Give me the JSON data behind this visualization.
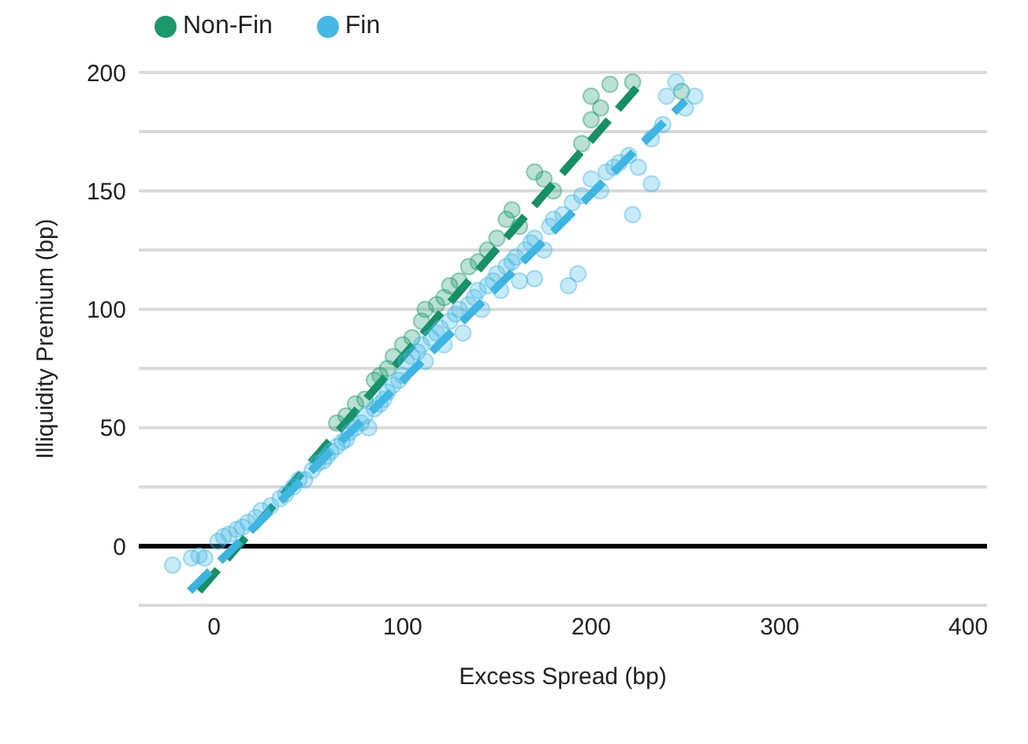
{
  "chart_data": {
    "type": "scatter",
    "xlabel": "Excess Spread (bp)",
    "ylabel": "Illiquidity Premium (bp)",
    "xlim": [
      -40,
      410
    ],
    "xticks": [
      0,
      100,
      200,
      300,
      400
    ],
    "ylim": [
      -25,
      200
    ],
    "yticks": [
      {
        "value": -25,
        "label": null
      },
      0,
      {
        "value": 25,
        "label": null
      },
      50,
      {
        "value": 75,
        "label": null
      },
      100,
      {
        "value": 125,
        "label": null
      },
      150,
      {
        "value": 175,
        "label": null
      },
      200
    ],
    "grid": "y",
    "legend": "top left",
    "marker": "circle",
    "ref_lines": [
      {
        "axis": "y",
        "value": 0,
        "color": "#000000"
      }
    ],
    "series": [
      {
        "type": "scatter",
        "name": "Non-Fin",
        "color": "#1a9a6c",
        "x": [
          65,
          70,
          75,
          80,
          85,
          88,
          92,
          95,
          100,
          105,
          110,
          112,
          118,
          122,
          125,
          130,
          135,
          140,
          145,
          150,
          155,
          158,
          162,
          170,
          175,
          180,
          195,
          200,
          205,
          210,
          222,
          242,
          248,
          200
        ],
        "values": [
          52,
          55,
          60,
          62,
          70,
          72,
          75,
          80,
          85,
          88,
          95,
          100,
          102,
          105,
          110,
          112,
          118,
          120,
          125,
          130,
          138,
          142,
          135,
          158,
          155,
          150,
          170,
          190,
          185,
          195,
          196,
          null,
          192,
          180
        ]
      },
      {
        "type": "scatter",
        "name": "Fin",
        "color": "#45b8e6",
        "x": [
          -22,
          -12,
          -8,
          -5,
          2,
          5,
          8,
          12,
          15,
          18,
          22,
          25,
          30,
          35,
          38,
          42,
          45,
          48,
          52,
          55,
          58,
          60,
          62,
          65,
          68,
          70,
          72,
          75,
          78,
          80,
          82,
          85,
          88,
          90,
          92,
          95,
          98,
          100,
          102,
          105,
          108,
          110,
          112,
          115,
          118,
          120,
          122,
          125,
          128,
          130,
          132,
          135,
          138,
          140,
          142,
          145,
          148,
          150,
          152,
          155,
          158,
          160,
          162,
          165,
          168,
          170,
          175,
          178,
          180,
          185,
          188,
          190,
          195,
          200,
          205,
          208,
          212,
          215,
          220,
          225,
          232,
          238,
          240,
          245,
          250,
          255,
          222,
          232,
          193,
          170
        ],
        "values": [
          -8,
          -5,
          -4,
          -5,
          2,
          4,
          5,
          7,
          8,
          10,
          12,
          15,
          17,
          20,
          22,
          25,
          28,
          28,
          32,
          35,
          36,
          38,
          40,
          42,
          44,
          45,
          48,
          50,
          52,
          55,
          50,
          58,
          60,
          62,
          65,
          68,
          70,
          72,
          78,
          80,
          82,
          85,
          78,
          88,
          90,
          92,
          85,
          95,
          98,
          100,
          90,
          102,
          105,
          108,
          100,
          110,
          112,
          115,
          108,
          118,
          120,
          122,
          112,
          125,
          128,
          130,
          125,
          135,
          138,
          140,
          110,
          145,
          148,
          155,
          150,
          158,
          160,
          162,
          165,
          160,
          172,
          178,
          190,
          196,
          185,
          190,
          140,
          153,
          115,
          113
        ]
      },
      {
        "type": "line",
        "color": "#168f66",
        "line_style": "dashed",
        "marker": "none",
        "x": [
          -8,
          229
        ],
        "values": [
          -19,
          198
        ]
      },
      {
        "type": "line",
        "color": "#3bb3e0",
        "line_style": "dashed",
        "marker": "none",
        "x": [
          -13,
          250
        ],
        "values": [
          -19,
          188
        ]
      }
    ]
  }
}
